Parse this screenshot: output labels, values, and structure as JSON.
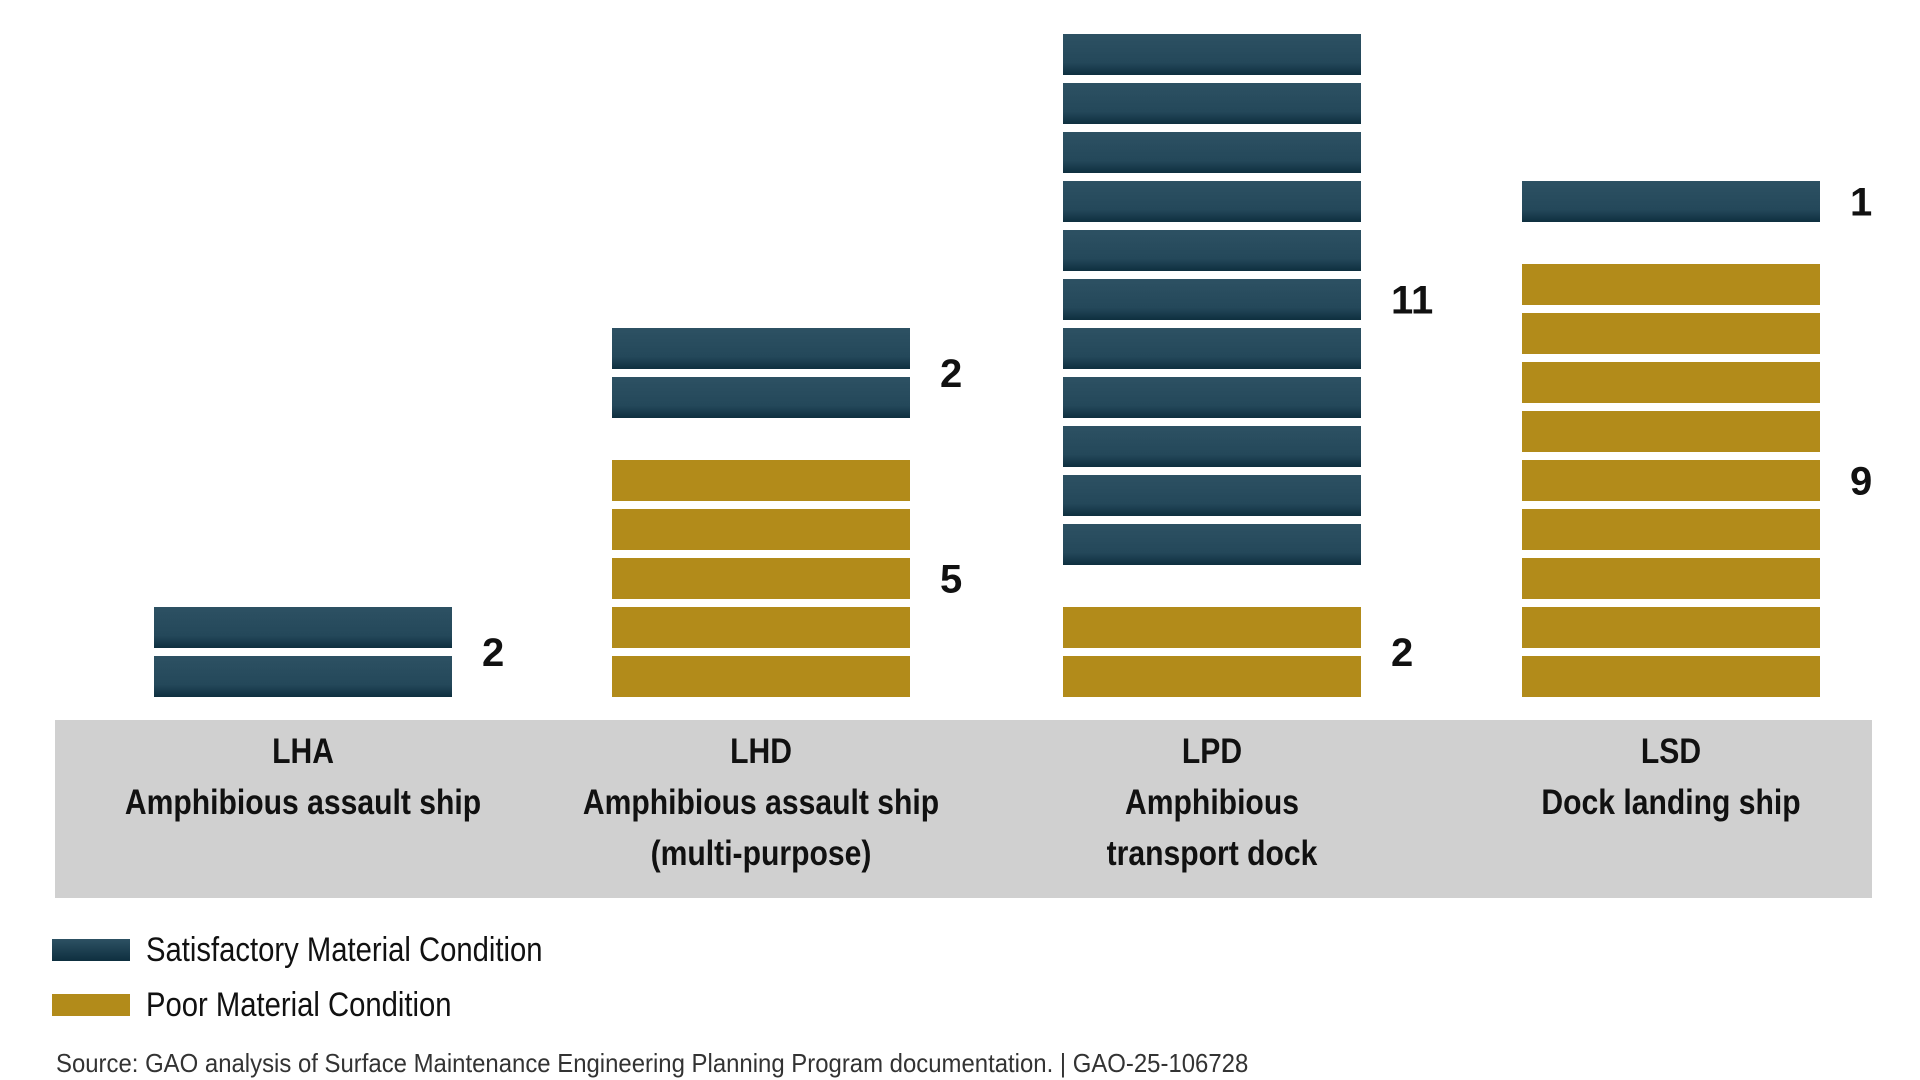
{
  "chart_data": {
    "type": "bar",
    "subtype": "stacked-unit-bars",
    "categories": [
      {
        "code": "LHA",
        "lines": [
          "LHA",
          "Amphibious assault ship"
        ]
      },
      {
        "code": "LHD",
        "lines": [
          "LHD",
          "Amphibious assault ship",
          "(multi-purpose)"
        ]
      },
      {
        "code": "LPD",
        "lines": [
          "LPD",
          "Amphibious",
          "transport dock"
        ]
      },
      {
        "code": "LSD",
        "lines": [
          "LSD",
          "Dock landing ship"
        ]
      }
    ],
    "series": [
      {
        "name": "Satisfactory Material Condition",
        "color": "#24485a",
        "values": [
          2,
          2,
          11,
          1
        ]
      },
      {
        "name": "Poor Material Condition",
        "color": "#b28b1a",
        "values": [
          0,
          5,
          2,
          9
        ]
      }
    ],
    "legend_position": "bottom-left",
    "grid": false
  },
  "legend": [
    {
      "label": "Satisfactory Material Condition",
      "color": "#24485a"
    },
    {
      "label": "Poor Material Condition",
      "color": "#b28b1a"
    }
  ],
  "source": "Source: GAO analysis of Surface Maintenance Engineering Planning Program documentation.  |  GAO-25-106728"
}
